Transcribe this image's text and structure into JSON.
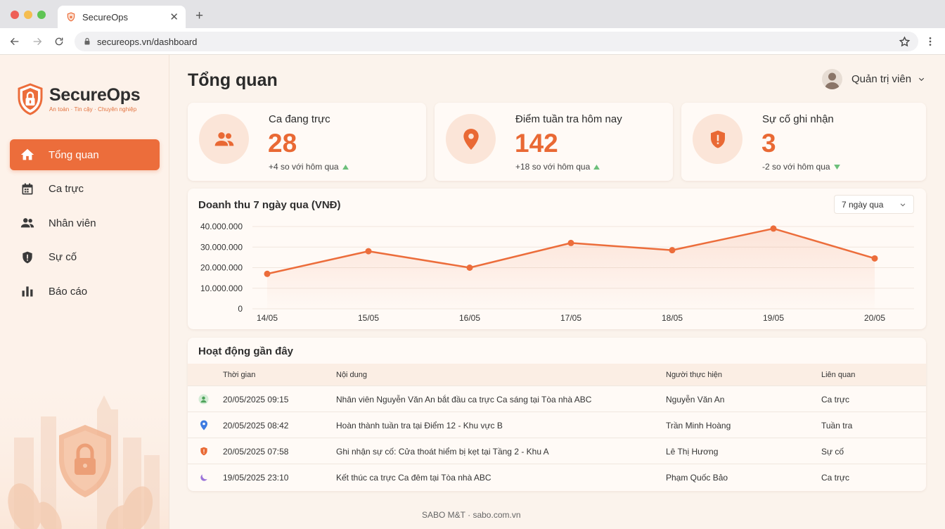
{
  "browser": {
    "tab_title": "SecureOps",
    "url": "secureops.vn/dashboard"
  },
  "brand": {
    "name": "SecureOps",
    "tagline": "An toàn · Tin cậy · Chuyên nghiệp",
    "accent": "#ec6d3b"
  },
  "sidebar": {
    "items": [
      {
        "label": "Tổng quan",
        "icon": "home-icon",
        "active": true
      },
      {
        "label": "Ca trực",
        "icon": "calendar-icon"
      },
      {
        "label": "Nhân viên",
        "icon": "people-icon"
      },
      {
        "label": "Sự cố",
        "icon": "shield-alert-icon"
      },
      {
        "label": "Báo cáo",
        "icon": "bar-chart-icon"
      }
    ]
  },
  "header": {
    "title": "Tổng quan",
    "user_name": "Quản trị viên"
  },
  "stats": [
    {
      "label": "Ca đang trực",
      "value": "28",
      "delta": "+4 so với hôm qua",
      "trend": "up",
      "icon": "people-icon"
    },
    {
      "label": "Điểm tuần tra hôm nay",
      "value": "142",
      "delta": "+18 so với hôm qua",
      "trend": "up",
      "icon": "location-pin-icon"
    },
    {
      "label": "Sự cố ghi nhận",
      "value": "3",
      "delta": "-2 so với hôm qua",
      "trend": "down",
      "icon": "shield-alert-icon"
    }
  ],
  "chart": {
    "title": "Doanh thu 7 ngày qua (VNĐ)",
    "range_label": "7 ngày qua"
  },
  "chart_data": {
    "type": "area",
    "categories": [
      "14/05",
      "15/05",
      "16/05",
      "17/05",
      "18/05",
      "19/05",
      "20/05"
    ],
    "values": [
      17000000,
      28000000,
      20000000,
      32000000,
      28500000,
      39000000,
      24500000
    ],
    "y_ticks": [
      "0",
      "10.000.000",
      "20.000.000",
      "30.000.000",
      "40.000.000"
    ],
    "ylim": [
      0,
      40000000
    ],
    "grid": true,
    "color": "#ec6d3b"
  },
  "activity": {
    "title": "Hoạt động gần đây",
    "columns": [
      "Thời gian",
      "Nội dung",
      "Người thực hiện",
      "Liên quan"
    ],
    "rows": [
      {
        "icon": "user-icon",
        "time": "20/05/2025 09:15",
        "content": "Nhân viên Nguyễn Văn An bắt đầu ca trực Ca sáng tại Tòa nhà ABC",
        "by": "Nguyễn Văn An",
        "related": "Ca trực"
      },
      {
        "icon": "location-pin-icon",
        "time": "20/05/2025 08:42",
        "content": "Hoàn thành tuần tra tại Điểm 12 - Khu vực B",
        "by": "Trần Minh Hoàng",
        "related": "Tuần tra"
      },
      {
        "icon": "shield-alert-icon",
        "time": "20/05/2025 07:58",
        "content": "Ghi nhận sự cố: Cửa thoát hiểm bị kẹt tại Tầng 2 - Khu A",
        "by": "Lê Thị Hương",
        "related": "Sự cố"
      },
      {
        "icon": "moon-icon",
        "time": "19/05/2025 23:10",
        "content": "Kết thúc ca trực Ca đêm tại Tòa nhà ABC",
        "by": "Phạm Quốc Bảo",
        "related": "Ca trực"
      }
    ]
  },
  "footer": {
    "text": "SABO M&T · sabo.com.vn"
  }
}
